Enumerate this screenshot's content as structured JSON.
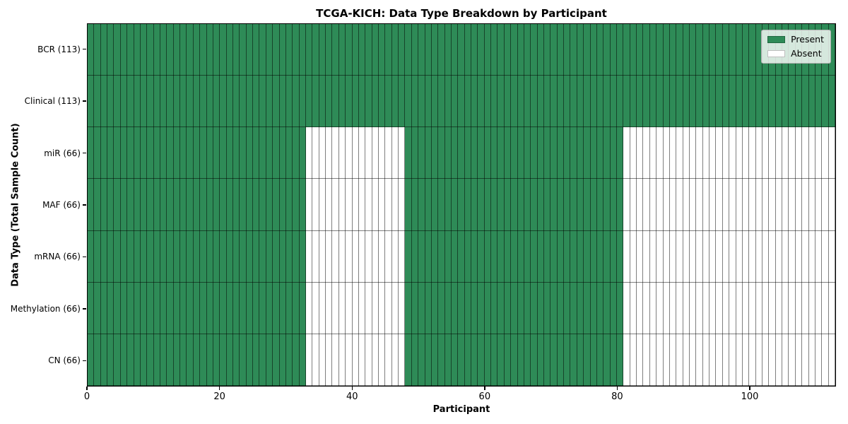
{
  "chart_data": {
    "type": "heatmap",
    "title": "TCGA-KICH: Data Type Breakdown by Participant",
    "xlabel": "Participant",
    "ylabel": "Data Type (Total Sample Count)",
    "n_participants": 113,
    "x_ticks": [
      0,
      20,
      40,
      60,
      80,
      100
    ],
    "legend": {
      "position": "upper right",
      "entries": [
        {
          "label": "Present",
          "color": "#2e8b57"
        },
        {
          "label": "Absent",
          "color": "#ffffff"
        }
      ]
    },
    "colors": {
      "present": "#2e8b57",
      "absent": "#ffffff",
      "cell_border": "rgba(0,0,0,0.5)",
      "spine": "#000000"
    },
    "rows": [
      {
        "label": "BCR (113)",
        "data_type": "BCR",
        "total_samples": 113,
        "present_ranges": [
          [
            0,
            112
          ]
        ]
      },
      {
        "label": "Clinical (113)",
        "data_type": "Clinical",
        "total_samples": 113,
        "present_ranges": [
          [
            0,
            112
          ]
        ]
      },
      {
        "label": "miR (66)",
        "data_type": "miR",
        "total_samples": 66,
        "present_ranges": [
          [
            0,
            32
          ],
          [
            48,
            80
          ]
        ]
      },
      {
        "label": "MAF (66)",
        "data_type": "MAF",
        "total_samples": 66,
        "present_ranges": [
          [
            0,
            32
          ],
          [
            48,
            80
          ]
        ]
      },
      {
        "label": "mRNA (66)",
        "data_type": "mRNA",
        "total_samples": 66,
        "present_ranges": [
          [
            0,
            32
          ],
          [
            48,
            80
          ]
        ]
      },
      {
        "label": "Methylation (66)",
        "data_type": "Methylation",
        "total_samples": 66,
        "present_ranges": [
          [
            0,
            32
          ],
          [
            48,
            80
          ]
        ]
      },
      {
        "label": "CN (66)",
        "data_type": "CN",
        "total_samples": 66,
        "present_ranges": [
          [
            0,
            32
          ],
          [
            48,
            80
          ]
        ]
      }
    ]
  }
}
